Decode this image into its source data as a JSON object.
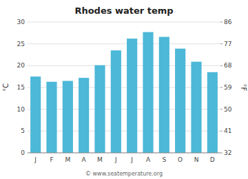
{
  "chart_data": {
    "type": "bar",
    "title": "Rhodes water temp",
    "categories": [
      "J",
      "F",
      "M",
      "A",
      "M",
      "J",
      "J",
      "A",
      "S",
      "O",
      "N",
      "D"
    ],
    "values": [
      17.5,
      16.3,
      16.5,
      17.2,
      20.1,
      23.5,
      26.2,
      27.7,
      26.6,
      23.9,
      20.9,
      18.5
    ],
    "color": "#4db8d8",
    "ylim": [
      0,
      30
    ],
    "yticks": [
      0,
      5,
      10,
      15,
      20,
      25,
      30
    ],
    "y2lim": [
      32,
      86
    ],
    "y2ticks": [
      32,
      41,
      50,
      59,
      68,
      77,
      86
    ],
    "ylabel": "°C",
    "y2label": "°F",
    "grid": true,
    "annotations": [
      "© www.seatemperature.org"
    ]
  }
}
